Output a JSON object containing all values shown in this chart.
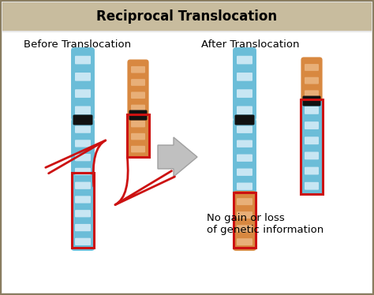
{
  "title": "Reciprocal Translocation",
  "title_bg": "#c8bc9e",
  "title_border": "#8a7d60",
  "body_bg": "#ffffff",
  "outer_bg": "#e8e8e8",
  "before_label": "Before Translocation",
  "after_label": "After Translocation",
  "note_label": "No gain or loss\nof genetic information",
  "blue_dark": "#4a9fc0",
  "blue_mid": "#6bbdd8",
  "blue_light": "#a8d8ea",
  "blue_stripe": "#d0eef8",
  "blue_stripe2": "#f0f8ff",
  "orange_dark": "#c07030",
  "orange_mid": "#d88840",
  "orange_light": "#e8a060",
  "orange_stripe": "#f0c090",
  "centromere_color": "#111111",
  "red_box": "#cc1111",
  "arrow_gray": "#c0c0c0",
  "arrow_border": "#a0a0a0"
}
